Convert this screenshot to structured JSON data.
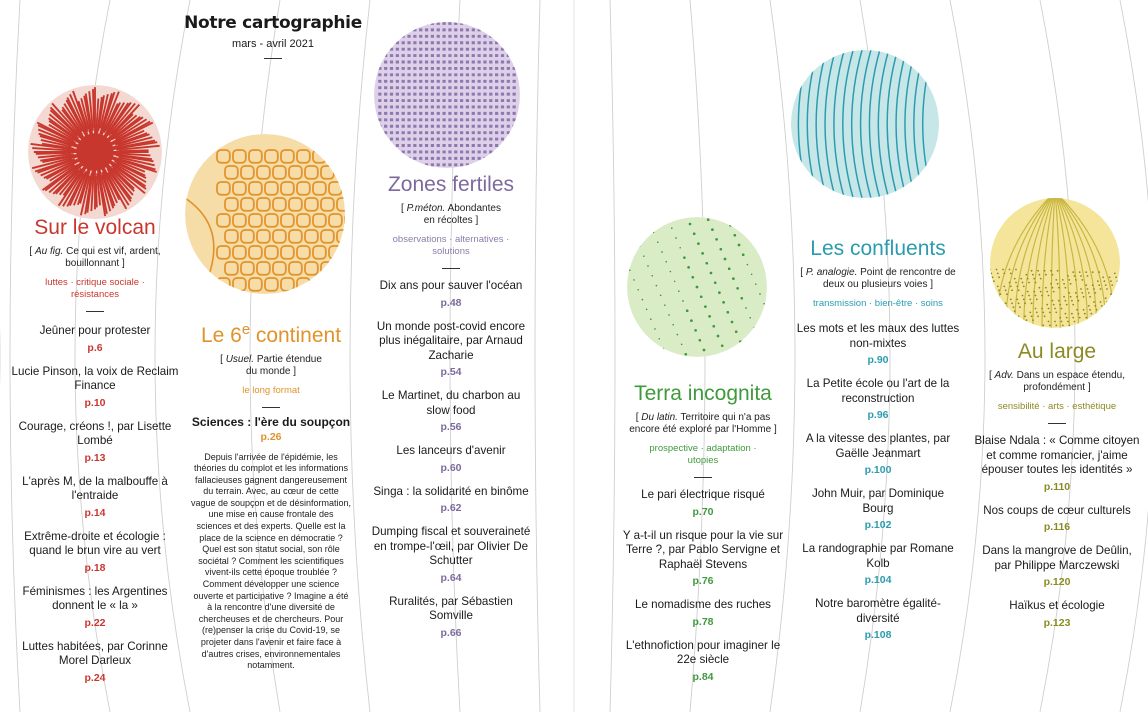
{
  "header": {
    "title": "Notre cartographie",
    "date": "mars - avril 2021"
  },
  "colors": {
    "red": "#c8372d",
    "orange": "#e1932b",
    "purple": "#7d6a9c",
    "green": "#3f9a3c",
    "teal": "#2a9cae",
    "olive": "#8c8a22"
  },
  "sections": [
    {
      "key": "volcan",
      "title": "Sur le volcan",
      "def_italic": "Au fig.",
      "def_text": " Ce qui est vif, ardent, bouillonnant",
      "tags": "luttes · critique sociale · résistances",
      "icon": "red-orb-icon",
      "items": [
        {
          "title": "Jeûner pour protester",
          "page": "p.6"
        },
        {
          "title": "Lucie Pinson, la voix de Reclaim Finance",
          "page": "p.10"
        },
        {
          "title": "Courage, créons !, par Lisette Lombé",
          "page": "p.13"
        },
        {
          "title": "L'après M, de la malbouffe à l'entraide",
          "page": "p.14"
        },
        {
          "title": "Extrême-droite et écologie : quand le brun vire au vert",
          "page": "p.18"
        },
        {
          "title": "Féminismes : les Argentines donnent le « la »",
          "page": "p.22"
        },
        {
          "title": "Luttes habitées, par Corinne Morel Darleux",
          "page": "p.24"
        }
      ]
    },
    {
      "key": "continent",
      "title_main": "Le 6",
      "title_sup": "e",
      "title_rest": " continent",
      "def_italic": "Usuel.",
      "def_text": " Partie étendue du monde",
      "tags": "le long format",
      "icon": "orange-orb-icon",
      "feature": {
        "title": "Sciences : l'ère du soupçon",
        "page": "p.26",
        "text": "Depuis l'arrivée de l'épidémie, les théories du complot et les informations fallacieuses gagnent dangereusement du terrain. Avec, au cœur de cette vague de soupçon et de désinformation, une mise en cause frontale des sciences et des experts. Quelle est la place de la science en démocratie ? Quel est son statut social, son rôle sociétal ? Comment les scientifiques vivent-ils cette époque troublée ? Comment développer une science ouverte et participative ? Imagine a été à la rencontre d'une diversité de chercheuses et de chercheurs. Pour (re)penser la crise du Covid-19, se projeter dans l'avenir et faire face à d'autres crises, environnementales notamment."
      }
    },
    {
      "key": "zones",
      "title": "Zones fertiles",
      "def_italic": "P.méton.",
      "def_text": " Abondantes en récoltes",
      "tags": "observations · alternatives · solutions",
      "icon": "purple-orb-icon",
      "items": [
        {
          "title": "Dix ans pour sauver l'océan",
          "page": "p.48"
        },
        {
          "title": "Un monde post-covid encore plus inégalitaire, par Arnaud Zacharie",
          "page": "p.54"
        },
        {
          "title": "Le Martinet, du charbon au slow food",
          "page": "p.56"
        },
        {
          "title": "Les lanceurs d'avenir",
          "page": "p.60"
        },
        {
          "title": "Singa : la solidarité en binôme",
          "page": "p.62"
        },
        {
          "title": "Dumping fiscal et souveraineté en trompe-l'œil, par Olivier De Schutter",
          "page": "p.64"
        },
        {
          "title": "Ruralités, par Sébastien Somville",
          "page": "p.66"
        }
      ]
    },
    {
      "key": "terra",
      "title": "Terra incognita",
      "def_italic": "Du latin.",
      "def_text": " Territoire qui n'a pas encore été exploré par l'Homme",
      "tags": "prospective · adaptation · utopies",
      "icon": "green-orb-icon",
      "items": [
        {
          "title": "Le pari électrique risqué",
          "page": "p.70"
        },
        {
          "title": "Y a-t-il un risque pour la vie sur Terre ?, par Pablo Servigne et Raphaël Stevens",
          "page": "p.76"
        },
        {
          "title": "Le nomadisme des ruches",
          "page": "p.78"
        },
        {
          "title": "L'ethnofiction pour imaginer le 22e siècle",
          "page": "p.84"
        }
      ]
    },
    {
      "key": "confluents",
      "title": "Les confluents",
      "def_italic": "P. analogie.",
      "def_text": " Point de rencontre de deux ou plusieurs voies",
      "tags": "transmission · bien-être · soins",
      "icon": "teal-orb-icon",
      "items": [
        {
          "title": "Les mots et les maux des luttes non-mixtes",
          "page": "p.90"
        },
        {
          "title": "La Petite école ou l'art de la reconstruction",
          "page": "p.96"
        },
        {
          "title": "A la vitesse des plantes, par Gaëlle Jeanmart",
          "page": "p.100"
        },
        {
          "title": "John Muir, par Dominique Bourg",
          "page": "p.102"
        },
        {
          "title": "La randographie par Romane Kolb",
          "page": "p.104"
        },
        {
          "title": "Notre baromètre égalité-diversité",
          "page": "p.108"
        }
      ]
    },
    {
      "key": "large",
      "title": "Au large",
      "def_italic": "Adv.",
      "def_text": " Dans un espace étendu, profondément",
      "tags": "sensibilité · arts · esthétique",
      "icon": "olive-orb-icon",
      "items": [
        {
          "title": "Blaise Ndala : « Comme citoyen et comme romancier, j'aime épouser toutes les identités »",
          "page": "p.110"
        },
        {
          "title": "Nos coups de cœur culturels",
          "page": "p.116"
        },
        {
          "title": "Dans la mangrove de Deûlin, par Philippe Marczewski",
          "page": "p.120"
        },
        {
          "title": "Haïkus et écologie",
          "page": "p.123"
        }
      ]
    }
  ]
}
